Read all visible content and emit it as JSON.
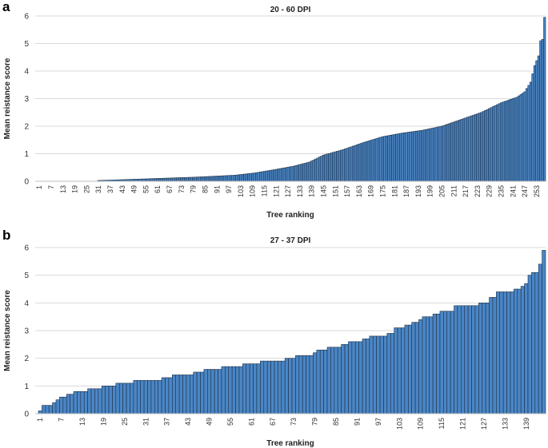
{
  "chart_data": [
    {
      "panel": "a",
      "type": "bar",
      "title": "20 - 60 DPI",
      "xlabel": "Tree ranking",
      "ylabel": "Mean reistance score",
      "ylim": [
        0,
        6
      ],
      "yticks": [
        0,
        1,
        2,
        3,
        4,
        5,
        6
      ],
      "n": 257,
      "x_tick_start": 1,
      "x_tick_step": 6,
      "grid": true,
      "legend": "none",
      "bar_color": "#4a86c6",
      "curve_knots": [
        [
          1,
          0
        ],
        [
          30,
          0
        ],
        [
          31,
          0.03
        ],
        [
          40,
          0.05
        ],
        [
          60,
          0.1
        ],
        [
          80,
          0.15
        ],
        [
          100,
          0.22
        ],
        [
          110,
          0.3
        ],
        [
          120,
          0.42
        ],
        [
          130,
          0.55
        ],
        [
          138,
          0.7
        ],
        [
          145,
          0.95
        ],
        [
          155,
          1.15
        ],
        [
          165,
          1.4
        ],
        [
          175,
          1.62
        ],
        [
          185,
          1.75
        ],
        [
          195,
          1.85
        ],
        [
          205,
          2.0
        ],
        [
          215,
          2.25
        ],
        [
          225,
          2.5
        ],
        [
          235,
          2.85
        ],
        [
          243,
          3.05
        ],
        [
          247,
          3.25
        ],
        [
          250,
          3.6
        ],
        [
          252,
          4.2
        ],
        [
          254,
          4.55
        ],
        [
          255,
          5.1
        ],
        [
          256,
          5.15
        ],
        [
          257,
          5.95
        ]
      ]
    },
    {
      "panel": "b",
      "type": "bar",
      "title": "27 - 37 DPI",
      "xlabel": "Tree ranking",
      "ylabel": "Mean reistance score",
      "ylim": [
        0,
        6
      ],
      "yticks": [
        0,
        1,
        2,
        3,
        4,
        5,
        6
      ],
      "n": 144,
      "x_tick_start": 1,
      "x_tick_step": 6,
      "grid": true,
      "legend": "none",
      "bar_color": "#4a86c6",
      "values": [
        0.1,
        0.3,
        0.3,
        0.3,
        0.4,
        0.5,
        0.6,
        0.6,
        0.7,
        0.7,
        0.8,
        0.8,
        0.8,
        0.8,
        0.9,
        0.9,
        0.9,
        0.9,
        1.0,
        1.0,
        1.0,
        1.0,
        1.1,
        1.1,
        1.1,
        1.1,
        1.1,
        1.2,
        1.2,
        1.2,
        1.2,
        1.2,
        1.2,
        1.2,
        1.2,
        1.3,
        1.3,
        1.3,
        1.4,
        1.4,
        1.4,
        1.4,
        1.4,
        1.4,
        1.5,
        1.5,
        1.5,
        1.6,
        1.6,
        1.6,
        1.6,
        1.6,
        1.7,
        1.7,
        1.7,
        1.7,
        1.7,
        1.7,
        1.8,
        1.8,
        1.8,
        1.8,
        1.8,
        1.9,
        1.9,
        1.9,
        1.9,
        1.9,
        1.9,
        1.9,
        2.0,
        2.0,
        2.0,
        2.1,
        2.1,
        2.1,
        2.1,
        2.1,
        2.2,
        2.3,
        2.3,
        2.3,
        2.4,
        2.4,
        2.4,
        2.4,
        2.5,
        2.5,
        2.6,
        2.6,
        2.6,
        2.6,
        2.7,
        2.7,
        2.8,
        2.8,
        2.8,
        2.8,
        2.8,
        2.9,
        2.9,
        3.1,
        3.1,
        3.1,
        3.2,
        3.2,
        3.3,
        3.3,
        3.4,
        3.5,
        3.5,
        3.5,
        3.6,
        3.6,
        3.7,
        3.7,
        3.7,
        3.7,
        3.9,
        3.9,
        3.9,
        3.9,
        3.9,
        3.9,
        3.9,
        4.0,
        4.0,
        4.0,
        4.2,
        4.2,
        4.4,
        4.4,
        4.4,
        4.4,
        4.4,
        4.5,
        4.5,
        4.6,
        4.7,
        5.0,
        5.1,
        5.1,
        5.4,
        5.9
      ]
    }
  ]
}
